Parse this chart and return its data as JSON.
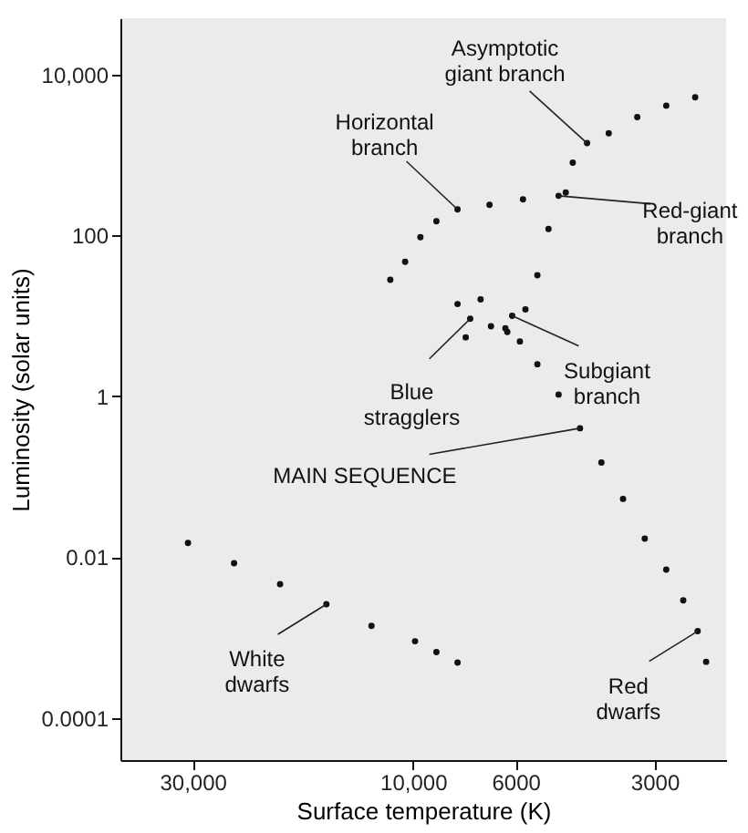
{
  "chart_data": {
    "type": "scatter",
    "xlabel": "Surface temperature (K)",
    "ylabel": "Luminosity (solar units)",
    "log": "xy",
    "xlim": [
      43000,
      2100
    ],
    "ylim": [
      3e-05,
      50000
    ],
    "xticks": [
      {
        "value": 30000,
        "label": "30,000"
      },
      {
        "value": 10000,
        "label": "10,000"
      },
      6000,
      3000
    ],
    "yticks": [
      0.0001,
      0.01,
      1,
      100,
      {
        "value": 10000,
        "label": "10,000"
      }
    ],
    "grid": false,
    "marker": "circle",
    "series": [
      {
        "color": "#111111",
        "x": [
          6250,
          5870,
          5380,
          4840,
          4350,
          3910,
          3510,
          3150,
          2830,
          2600,
          2420,
          2320,
          6310,
          6100,
          5710,
          5380,
          5090,
          4840,
          4510,
          4200,
          3770,
          3270,
          2830,
          2450,
          4670,
          5780,
          6830,
          8010,
          8900,
          9640,
          10400,
          11200,
          8010,
          7520,
          7140,
          6780,
          7690,
          30700,
          24400,
          19400,
          15400,
          12300,
          9900,
          8900,
          8010
        ],
        "values": [
          6.3,
          4.8,
          2.5,
          1.05,
          0.4,
          0.15,
          0.053,
          0.017,
          0.007,
          0.0029,
          0.0012,
          0.0005,
          7,
          10,
          12,
          32,
          120,
          310,
          800,
          1400,
          1860,
          2950,
          4100,
          5200,
          340,
          280,
          240,
          210,
          150,
          95,
          47,
          28,
          14,
          9.2,
          16,
          7.4,
          5.4,
          0.015,
          0.0084,
          0.0046,
          0.0026,
          0.0014,
          0.0009,
          0.00066,
          0.00049
        ]
      }
    ],
    "annotations": [
      {
        "text": "Asymptotic\ngiant branch",
        "x": 4200,
        "y": 1400
      },
      {
        "text": "Horizontal\nbranch",
        "x": 8010,
        "y": 210
      },
      {
        "text": "Red-giant\nbranch",
        "x": 4840,
        "y": 310
      },
      {
        "text": "Blue\nstragglers",
        "x": 7520,
        "y": 9.2
      },
      {
        "text": "Subgiant\nbranch",
        "x": 6100,
        "y": 10
      },
      {
        "text": "MAIN SEQUENCE",
        "x": 4350,
        "y": 0.4
      },
      {
        "text": "White\ndwarfs",
        "x": 15400,
        "y": 0.0026
      },
      {
        "text": "Red\ndwarfs",
        "x": 2420,
        "y": 0.0012
      }
    ]
  }
}
